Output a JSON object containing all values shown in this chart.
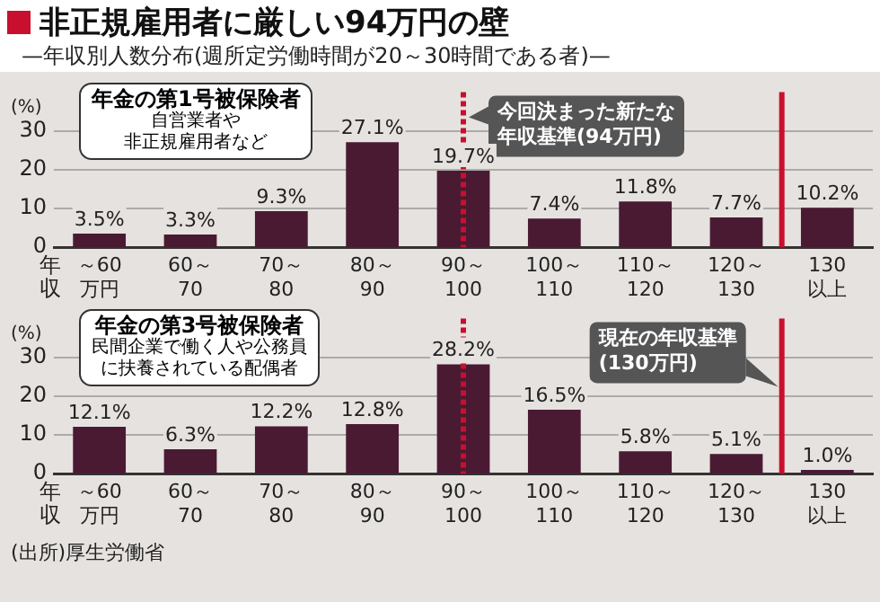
{
  "chart_data": [
    {
      "type": "bar",
      "title": "非正規雇用者に厳しい94万円の壁",
      "subtitle": "—年収別人数分布(週所定労働時間が20～30時間である者)—",
      "categories": [
        "～60\n万円",
        "60～\n70",
        "70～\n80",
        "80～\n90",
        "90～\n100",
        "100～\n110",
        "110～\n120",
        "120～\n130",
        "130\n以上"
      ],
      "values": [
        3.5,
        3.3,
        9.3,
        27.1,
        19.7,
        7.4,
        11.8,
        7.7,
        10.2
      ],
      "color": "#4a1a33",
      "value_labels": [
        "3.5%",
        "3.3%",
        "9.3%",
        "27.1%",
        "19.7%",
        "7.4%",
        "11.8%",
        "7.7%",
        "10.2%"
      ],
      "ylim": [
        0,
        40
      ],
      "yticks": [
        0,
        10,
        20,
        30
      ],
      "ylabel": "(%)",
      "xlabel": "年収",
      "grid": "y",
      "annotations": [
        "年金の第1号被保険者",
        "自営業者や",
        "非正規雇用者など"
      ],
      "ref_lines": [
        {
          "axis": "x",
          "value": "90～\n100",
          "label": "今回決まった新たな年収基準(94万円)",
          "color": "#c8102e",
          "line_style": "dashed"
        },
        {
          "axis": "x",
          "value": "130\n以上",
          "label": null,
          "color": "#c8102e",
          "line_style": "solid"
        }
      ]
    },
    {
      "type": "bar",
      "categories": [
        "～60\n万円",
        "60～\n70",
        "70～\n80",
        "80～\n90",
        "90～\n100",
        "100～\n110",
        "110～\n120",
        "120～\n130",
        "130\n以上"
      ],
      "values": [
        12.1,
        6.3,
        12.2,
        12.8,
        28.2,
        16.5,
        5.8,
        5.1,
        1.0
      ],
      "color": "#4a1a33",
      "value_labels": [
        "12.1%",
        "6.3%",
        "12.2%",
        "12.8%",
        "28.2%",
        "16.5%",
        "5.8%",
        "5.1%",
        "1.0%"
      ],
      "ylim": [
        0,
        40
      ],
      "yticks": [
        0,
        10,
        20,
        30
      ],
      "ylabel": "(%)",
      "xlabel": "年収",
      "grid": "y",
      "annotations": [
        "年金の第3号被保険者",
        "民間企業で働く人や公務員",
        "に扶養されている配偶者",
        "(出所)厚生労働省"
      ],
      "ref_lines": [
        {
          "axis": "x",
          "value": "90～\n100",
          "label": null,
          "color": "#c8102e",
          "line_style": "dashed"
        },
        {
          "axis": "x",
          "value": "130\n以上",
          "label": "現在の年収基準(130万円)",
          "color": "#c8102e",
          "line_style": "solid"
        }
      ]
    }
  ]
}
